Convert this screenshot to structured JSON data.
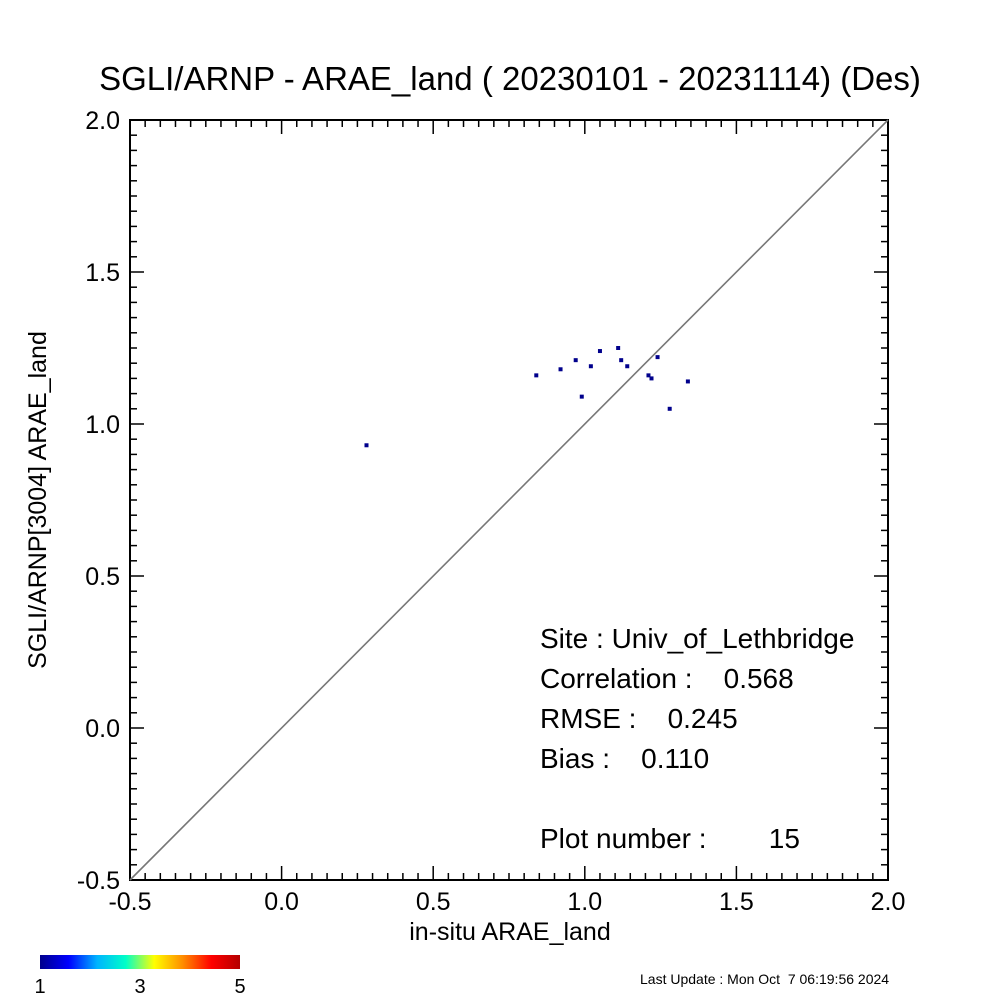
{
  "chart_data": {
    "type": "scatter",
    "title": "SGLI/ARNP - ARAE_land ( 20230101 - 20231114) (Des)",
    "xlabel": "in-situ ARAE_land",
    "ylabel": "SGLI/ARNP[3004]     ARAE_land",
    "xlim": [
      -0.5,
      2.0
    ],
    "ylim": [
      -0.5,
      2.0
    ],
    "xticks": [
      "-0.5",
      "0.0",
      "0.5",
      "1.0",
      "1.5",
      "2.0"
    ],
    "yticks": [
      "-0.5",
      "0.0",
      "0.5",
      "1.0",
      "1.5",
      "2.0"
    ],
    "reference_line": "1:1",
    "grid": false,
    "point_color": "#00008c",
    "points": [
      {
        "x": 0.28,
        "y": 0.93
      },
      {
        "x": 0.84,
        "y": 1.16
      },
      {
        "x": 0.92,
        "y": 1.18
      },
      {
        "x": 0.97,
        "y": 1.21
      },
      {
        "x": 0.99,
        "y": 1.09
      },
      {
        "x": 1.02,
        "y": 1.19
      },
      {
        "x": 1.05,
        "y": 1.24
      },
      {
        "x": 1.11,
        "y": 1.25
      },
      {
        "x": 1.12,
        "y": 1.21
      },
      {
        "x": 1.14,
        "y": 1.19
      },
      {
        "x": 1.21,
        "y": 1.16
      },
      {
        "x": 1.22,
        "y": 1.15
      },
      {
        "x": 1.24,
        "y": 1.22
      },
      {
        "x": 1.28,
        "y": 1.05
      },
      {
        "x": 1.34,
        "y": 1.14
      }
    ],
    "stats": {
      "site": "Site : Univ_of_Lethbridge",
      "correlation": "Correlation :    0.568",
      "rmse": "RMSE :    0.245",
      "bias": "Bias :    0.110",
      "plot_number": "Plot number :        15"
    },
    "colorbar": {
      "colors": [
        "#00008c",
        "#0000ff",
        "#00b4ff",
        "#00ffc8",
        "#ffff00",
        "#ff8c00",
        "#ff0000",
        "#b40000"
      ],
      "labels": [
        "1",
        "3",
        "5"
      ]
    },
    "footer": "Last Update : Mon Oct  7 06:19:56 2024"
  }
}
